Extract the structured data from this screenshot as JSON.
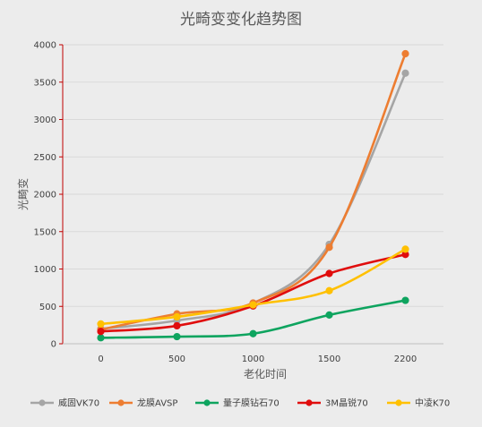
{
  "chart_data": {
    "type": "line",
    "title": "光畸变变化趋势图",
    "xlabel": "老化时间",
    "ylabel": "光畸变",
    "categories": [
      "0",
      "500",
      "1000",
      "1500",
      "2200"
    ],
    "ylim": [
      0,
      4000
    ],
    "yticks": [
      0,
      500,
      1000,
      1500,
      2000,
      2500,
      3000,
      3500,
      4000
    ],
    "grid": true,
    "smooth": true,
    "legend_position": "bottom",
    "series": [
      {
        "name": "威固VK70",
        "color": "#a5a5a5",
        "values": [
          200,
          310,
          540,
          1330,
          3620
        ]
      },
      {
        "name": "龙膜AVSP",
        "color": "#ed7d31",
        "values": [
          190,
          400,
          545,
          1290,
          3880
        ]
      },
      {
        "name": "量子膜钻石70",
        "color": "#0ea45f",
        "values": [
          80,
          95,
          135,
          385,
          580
        ]
      },
      {
        "name": "3M晶锐70",
        "color": "#e00d0d",
        "values": [
          165,
          240,
          505,
          940,
          1195
        ]
      },
      {
        "name": "中凌K70",
        "color": "#ffc000",
        "values": [
          265,
          360,
          520,
          710,
          1265
        ]
      }
    ]
  }
}
